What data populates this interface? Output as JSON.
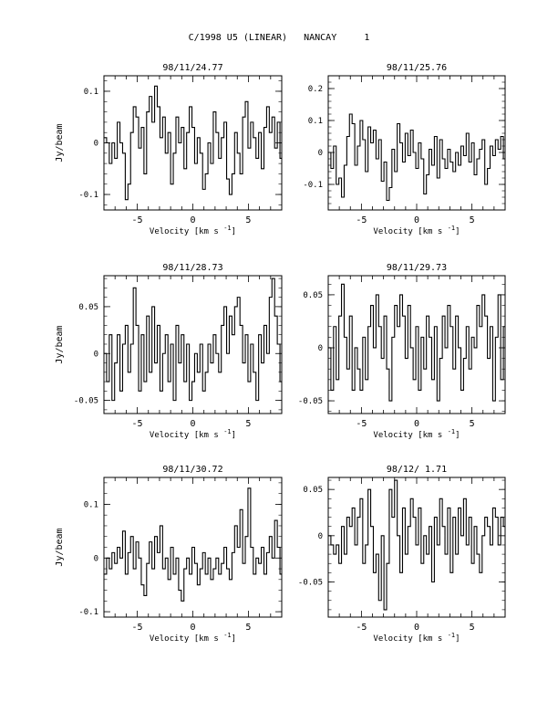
{
  "page": {
    "title": "C/1998 U5 (LINEAR)   NANCAY     1"
  },
  "chart_data": [
    {
      "type": "line",
      "title": "98/11/24.77",
      "xlabel": "Velocity [km s",
      "xlabel_sup": "-1",
      "xlabel_end": "]",
      "ylabel": "Jy/beam",
      "xlim": [
        -8,
        8
      ],
      "ylim": [
        -0.13,
        0.13
      ],
      "xticks": [
        -5,
        0,
        5
      ],
      "yticks": [
        0.1,
        0,
        -0.1
      ],
      "ytick_labels": [
        "0.1",
        "0",
        "-0.1"
      ],
      "x_step": 0.24,
      "y": [
        0.01,
        0.0,
        -0.04,
        0.0,
        -0.03,
        0.04,
        0.0,
        -0.02,
        -0.11,
        -0.08,
        0.02,
        0.07,
        0.05,
        -0.01,
        0.03,
        -0.06,
        0.06,
        0.09,
        0.04,
        0.11,
        0.07,
        0.01,
        0.05,
        -0.02,
        0.02,
        -0.08,
        -0.02,
        0.05,
        0.0,
        0.03,
        -0.05,
        0.02,
        0.07,
        0.03,
        -0.04,
        0.01,
        -0.02,
        -0.09,
        -0.06,
        0.0,
        -0.04,
        0.06,
        0.02,
        -0.03,
        0.01,
        0.04,
        -0.07,
        -0.1,
        -0.06,
        0.02,
        -0.02,
        -0.06,
        0.05,
        0.08,
        -0.01,
        0.04,
        0.01,
        -0.03,
        0.02,
        -0.05,
        0.03,
        0.07,
        0.02,
        0.05,
        -0.01,
        0.04,
        -0.03,
        0.02,
        0.06,
        0.03
      ]
    },
    {
      "type": "line",
      "title": "98/11/25.76",
      "xlabel": "Velocity [km s",
      "xlabel_sup": "-1",
      "xlabel_end": "]",
      "ylabel": "",
      "xlim": [
        -8,
        8
      ],
      "ylim": [
        -0.18,
        0.24
      ],
      "xticks": [
        -5,
        0,
        5
      ],
      "yticks": [
        0.2,
        0.1,
        0,
        -0.1
      ],
      "ytick_labels": [
        "0.2",
        "0.1",
        "0",
        "-0.1"
      ],
      "x_step": 0.24,
      "y": [
        0.0,
        -0.05,
        0.02,
        -0.1,
        -0.08,
        -0.14,
        -0.04,
        0.05,
        0.12,
        0.09,
        -0.04,
        0.02,
        0.1,
        0.04,
        -0.06,
        0.08,
        0.03,
        0.07,
        -0.02,
        0.04,
        -0.09,
        -0.03,
        -0.15,
        -0.11,
        0.01,
        -0.06,
        0.09,
        0.03,
        -0.03,
        0.06,
        -0.01,
        0.07,
        0.0,
        -0.05,
        0.03,
        -0.02,
        -0.13,
        -0.07,
        0.01,
        -0.04,
        0.05,
        -0.08,
        0.04,
        -0.02,
        -0.05,
        0.01,
        -0.03,
        -0.06,
        0.0,
        -0.04,
        0.02,
        -0.01,
        0.06,
        -0.03,
        0.03,
        -0.07,
        -0.02,
        0.01,
        0.04,
        -0.1,
        -0.05,
        0.02,
        -0.01,
        0.04,
        0.01,
        0.05,
        -0.02,
        0.03,
        0.02,
        -0.03
      ]
    },
    {
      "type": "line",
      "title": "98/11/28.73",
      "xlabel": "Velocity [km s",
      "xlabel_sup": "-1",
      "xlabel_end": "]",
      "ylabel": "Jy/beam",
      "xlim": [
        -8,
        8
      ],
      "ylim": [
        -0.064,
        0.083
      ],
      "xticks": [
        -5,
        0,
        5
      ],
      "yticks": [
        0.05,
        0,
        -0.05
      ],
      "ytick_labels": [
        "0.05",
        "0",
        "-0.05"
      ],
      "x_step": 0.24,
      "y": [
        0.0,
        -0.03,
        0.02,
        -0.05,
        -0.01,
        0.02,
        -0.04,
        0.01,
        0.03,
        -0.02,
        0.01,
        0.07,
        0.03,
        -0.04,
        0.02,
        -0.03,
        0.04,
        -0.02,
        0.05,
        -0.01,
        0.03,
        -0.04,
        0.0,
        0.02,
        -0.03,
        0.01,
        -0.05,
        0.03,
        -0.01,
        0.02,
        -0.03,
        0.01,
        -0.05,
        -0.03,
        0.0,
        -0.02,
        0.01,
        -0.04,
        -0.02,
        0.01,
        -0.01,
        0.02,
        0.0,
        -0.02,
        0.03,
        0.05,
        0.0,
        0.04,
        0.02,
        0.05,
        0.06,
        0.03,
        -0.01,
        0.02,
        -0.03,
        0.01,
        -0.02,
        -0.05,
        0.02,
        -0.01,
        0.03,
        0.0,
        0.06,
        0.08,
        0.04,
        0.01,
        -0.03,
        0.0,
        -0.02,
        0.01
      ]
    },
    {
      "type": "line",
      "title": "98/11/29.73",
      "xlabel": "Velocity [km s",
      "xlabel_sup": "-1",
      "xlabel_end": "]",
      "ylabel": "",
      "xlim": [
        -8,
        8
      ],
      "ylim": [
        -0.062,
        0.068
      ],
      "xticks": [
        -5,
        0,
        5
      ],
      "yticks": [
        0.05,
        0,
        -0.05
      ],
      "ytick_labels": [
        "0.05",
        "0",
        "-0.05"
      ],
      "x_step": 0.24,
      "y": [
        0.0,
        -0.04,
        0.02,
        -0.03,
        0.03,
        0.06,
        0.01,
        -0.02,
        0.03,
        -0.04,
        0.0,
        -0.02,
        -0.04,
        0.01,
        -0.03,
        0.02,
        0.04,
        0.0,
        0.05,
        0.02,
        -0.01,
        0.03,
        -0.02,
        -0.05,
        0.01,
        0.04,
        0.02,
        0.05,
        0.03,
        -0.01,
        0.04,
        0.0,
        -0.03,
        0.02,
        -0.04,
        0.01,
        -0.02,
        0.03,
        0.01,
        -0.03,
        0.02,
        -0.05,
        -0.01,
        0.03,
        0.0,
        0.04,
        0.02,
        -0.02,
        0.03,
        0.0,
        -0.04,
        -0.01,
        0.02,
        -0.02,
        0.01,
        0.0,
        0.04,
        0.02,
        0.05,
        0.03,
        -0.01,
        0.02,
        -0.05,
        0.01,
        0.05,
        -0.03,
        0.02,
        0.04,
        -0.05,
        0.01
      ]
    },
    {
      "type": "line",
      "title": "98/11/30.72",
      "xlabel": "Velocity [km s",
      "xlabel_sup": "-1",
      "xlabel_end": "]",
      "ylabel": "Jy/beam",
      "xlim": [
        -8,
        8
      ],
      "ylim": [
        -0.11,
        0.15
      ],
      "xticks": [
        -5,
        0,
        5
      ],
      "yticks": [
        0.1,
        0,
        -0.1
      ],
      "ytick_labels": [
        "0.1",
        "0",
        "-0.1"
      ],
      "x_step": 0.24,
      "y": [
        -0.03,
        0.0,
        -0.02,
        0.01,
        -0.01,
        0.02,
        0.0,
        0.05,
        -0.03,
        0.01,
        0.04,
        -0.02,
        0.03,
        0.0,
        -0.05,
        -0.07,
        -0.01,
        0.03,
        -0.02,
        0.04,
        0.01,
        0.06,
        -0.02,
        0.0,
        -0.04,
        0.02,
        -0.03,
        0.0,
        -0.06,
        -0.08,
        -0.02,
        0.0,
        -0.03,
        0.02,
        -0.01,
        -0.05,
        -0.02,
        0.01,
        -0.03,
        0.0,
        -0.04,
        -0.02,
        0.0,
        -0.03,
        -0.01,
        0.02,
        -0.02,
        -0.04,
        0.01,
        0.06,
        0.02,
        0.09,
        -0.01,
        0.04,
        0.13,
        0.02,
        -0.03,
        0.0,
        -0.01,
        0.02,
        -0.03,
        0.01,
        0.04,
        0.0,
        0.07,
        0.02,
        -0.03,
        0.0,
        -0.05,
        -0.08
      ]
    },
    {
      "type": "line",
      "title": "98/12/ 1.71",
      "xlabel": "Velocity [km s",
      "xlabel_sup": "-1",
      "xlabel_end": "]",
      "ylabel": "",
      "xlim": [
        -8,
        8
      ],
      "ylim": [
        -0.088,
        0.063
      ],
      "xticks": [
        -5,
        0,
        5
      ],
      "yticks": [
        0.05,
        0,
        -0.05
      ],
      "ytick_labels": [
        "0.05",
        "0",
        "-0.05"
      ],
      "x_step": 0.24,
      "y": [
        0.0,
        -0.01,
        -0.02,
        -0.01,
        -0.03,
        0.01,
        -0.02,
        0.02,
        0.01,
        0.03,
        -0.01,
        0.02,
        0.04,
        -0.03,
        -0.01,
        0.05,
        0.01,
        -0.04,
        -0.02,
        -0.07,
        0.0,
        -0.08,
        -0.03,
        0.05,
        0.02,
        0.06,
        0.0,
        -0.04,
        0.03,
        -0.02,
        0.01,
        0.04,
        0.02,
        -0.01,
        0.03,
        -0.03,
        0.0,
        -0.02,
        0.01,
        -0.05,
        0.02,
        -0.01,
        0.04,
        0.01,
        -0.02,
        0.03,
        -0.04,
        0.02,
        -0.02,
        0.03,
        0.0,
        0.04,
        -0.01,
        0.02,
        -0.03,
        0.01,
        -0.02,
        -0.04,
        0.0,
        0.02,
        0.01,
        -0.01,
        0.03,
        0.02,
        -0.01,
        0.02,
        0.01,
        0.03,
        0.02,
        0.02
      ]
    }
  ]
}
